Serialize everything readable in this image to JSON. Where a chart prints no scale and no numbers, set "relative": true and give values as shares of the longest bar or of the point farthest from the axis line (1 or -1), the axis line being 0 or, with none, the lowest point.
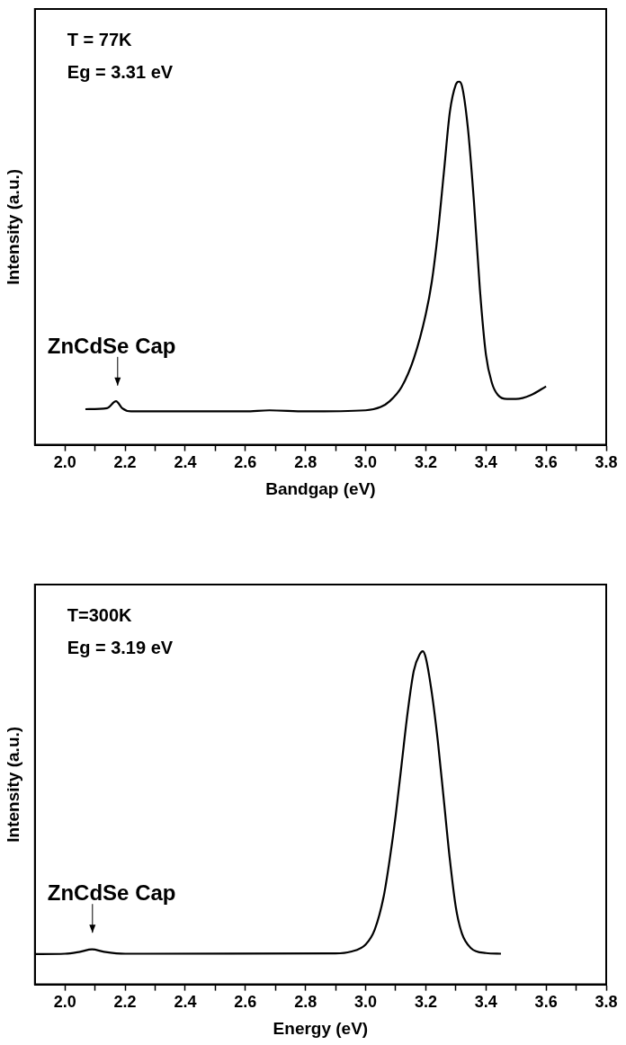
{
  "chart_data": [
    {
      "type": "line",
      "relative": true,
      "xlabel": "Bandgap (eV)",
      "ylabel": "Intensity (a.u.)",
      "xlim": [
        1.9,
        3.8
      ],
      "xticks": [
        {
          "value": 2.0,
          "label": "2.0"
        },
        {
          "value": 2.1,
          "label": null
        },
        {
          "value": 2.2,
          "label": "2.2"
        },
        {
          "value": 2.3,
          "label": null
        },
        {
          "value": 2.4,
          "label": "2.4"
        },
        {
          "value": 2.5,
          "label": null
        },
        {
          "value": 2.6,
          "label": "2.6"
        },
        {
          "value": 2.7,
          "label": null
        },
        {
          "value": 2.8,
          "label": "2.8"
        },
        {
          "value": 2.9,
          "label": null
        },
        {
          "value": 3.0,
          "label": "3.0"
        },
        {
          "value": 3.1,
          "label": null
        },
        {
          "value": 3.2,
          "label": "3.2"
        },
        {
          "value": 3.3,
          "label": null
        },
        {
          "value": 3.4,
          "label": "3.4"
        },
        {
          "value": 3.5,
          "label": null
        },
        {
          "value": 3.6,
          "label": "3.6"
        },
        {
          "value": 3.7,
          "label": null
        },
        {
          "value": 3.8,
          "label": "3.8"
        }
      ],
      "marker": "none",
      "grid": false,
      "legend": false,
      "series": [
        {
          "color": "#000000",
          "x": [
            2.068,
            2.14,
            2.17,
            2.19,
            2.22,
            2.4,
            2.6,
            2.68,
            2.8,
            3.0,
            3.05,
            3.08,
            3.12,
            3.16,
            3.2,
            3.22,
            3.24,
            3.26,
            3.28,
            3.3,
            3.31,
            3.32,
            3.34,
            3.36,
            3.38,
            3.4,
            3.42,
            3.44,
            3.47,
            3.5,
            3.55,
            3.6
          ],
          "values": [
            0.098,
            0.101,
            0.12,
            0.101,
            0.092,
            0.092,
            0.092,
            0.095,
            0.092,
            0.095,
            0.104,
            0.12,
            0.16,
            0.237,
            0.36,
            0.449,
            0.582,
            0.749,
            0.916,
            0.992,
            1,
            0.989,
            0.872,
            0.671,
            0.427,
            0.248,
            0.17,
            0.137,
            0.126,
            0.126,
            0.137,
            0.161
          ]
        }
      ],
      "annotations": [
        "T = 77K",
        "Eg = 3.31 eV",
        "ZnCdSe Cap"
      ]
    },
    {
      "type": "line",
      "relative": true,
      "xlabel": "Energy (eV)",
      "ylabel": "Intensity (a.u.)",
      "xlim": [
        1.9,
        3.8
      ],
      "xticks": [
        {
          "value": 2.0,
          "label": "2.0"
        },
        {
          "value": 2.1,
          "label": null
        },
        {
          "value": 2.2,
          "label": "2.2"
        },
        {
          "value": 2.3,
          "label": null
        },
        {
          "value": 2.4,
          "label": "2.4"
        },
        {
          "value": 2.5,
          "label": null
        },
        {
          "value": 2.6,
          "label": "2.6"
        },
        {
          "value": 2.7,
          "label": null
        },
        {
          "value": 2.8,
          "label": "2.8"
        },
        {
          "value": 2.9,
          "label": null
        },
        {
          "value": 3.0,
          "label": "3.0"
        },
        {
          "value": 3.1,
          "label": null
        },
        {
          "value": 3.2,
          "label": "3.2"
        },
        {
          "value": 3.3,
          "label": null
        },
        {
          "value": 3.4,
          "label": "3.4"
        },
        {
          "value": 3.5,
          "label": null
        },
        {
          "value": 3.6,
          "label": "3.6"
        },
        {
          "value": 3.7,
          "label": null
        },
        {
          "value": 3.8,
          "label": "3.8"
        }
      ],
      "marker": "none",
      "grid": false,
      "legend": false,
      "series": [
        {
          "color": "#000000",
          "x": [
            1.9,
            2.0,
            2.05,
            2.09,
            2.13,
            2.2,
            2.9,
            2.95,
            3.0,
            3.03,
            3.06,
            3.08,
            3.1,
            3.12,
            3.14,
            3.16,
            3.18,
            3.19,
            3.2,
            3.22,
            3.24,
            3.26,
            3.28,
            3.3,
            3.32,
            3.35,
            3.4,
            3.45
          ],
          "values": [
            0.091,
            0.092,
            0.098,
            0.105,
            0.098,
            0.092,
            0.093,
            0.098,
            0.12,
            0.164,
            0.264,
            0.375,
            0.508,
            0.664,
            0.819,
            0.941,
            0.991,
            1,
            0.98,
            0.875,
            0.73,
            0.553,
            0.375,
            0.231,
            0.153,
            0.109,
            0.094,
            0.092
          ]
        }
      ],
      "annotations": [
        "T=300K",
        "Eg = 3.19 eV",
        "ZnCdSe Cap"
      ]
    }
  ]
}
